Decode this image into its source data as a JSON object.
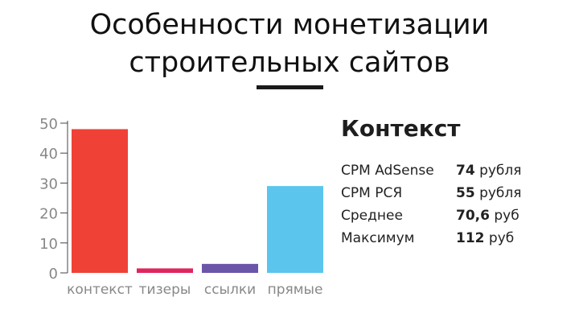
{
  "title": {
    "line1": "Особенности монетизации",
    "line2": "строительных сайтов"
  },
  "colors": {
    "bar_kontekst": "#ef4136",
    "bar_tizery": "#e0245e",
    "bar_ssylki": "#6b55a8",
    "bar_pryamye": "#5bc5ee",
    "axis": "#444444",
    "tick_text": "#888888"
  },
  "chart_data": {
    "type": "bar",
    "categories": [
      "контекст",
      "тизеры",
      "ссылки",
      "прямые"
    ],
    "values": [
      48,
      1.5,
      3,
      29
    ],
    "ylim": [
      0,
      50
    ],
    "yticks": [
      "0",
      "10",
      "20",
      "30",
      "40",
      "50"
    ],
    "grid": false
  },
  "panel": {
    "title": "Контекст",
    "rows": [
      {
        "label": "CPM AdSense",
        "number": "74",
        "unit": "рубля"
      },
      {
        "label": "CPM РСЯ",
        "number": "55",
        "unit": "рубля"
      },
      {
        "label": "Среднее",
        "number": "70,6",
        "unit": "руб"
      },
      {
        "label": "Максимум",
        "number": "112",
        "unit": "руб"
      }
    ]
  }
}
